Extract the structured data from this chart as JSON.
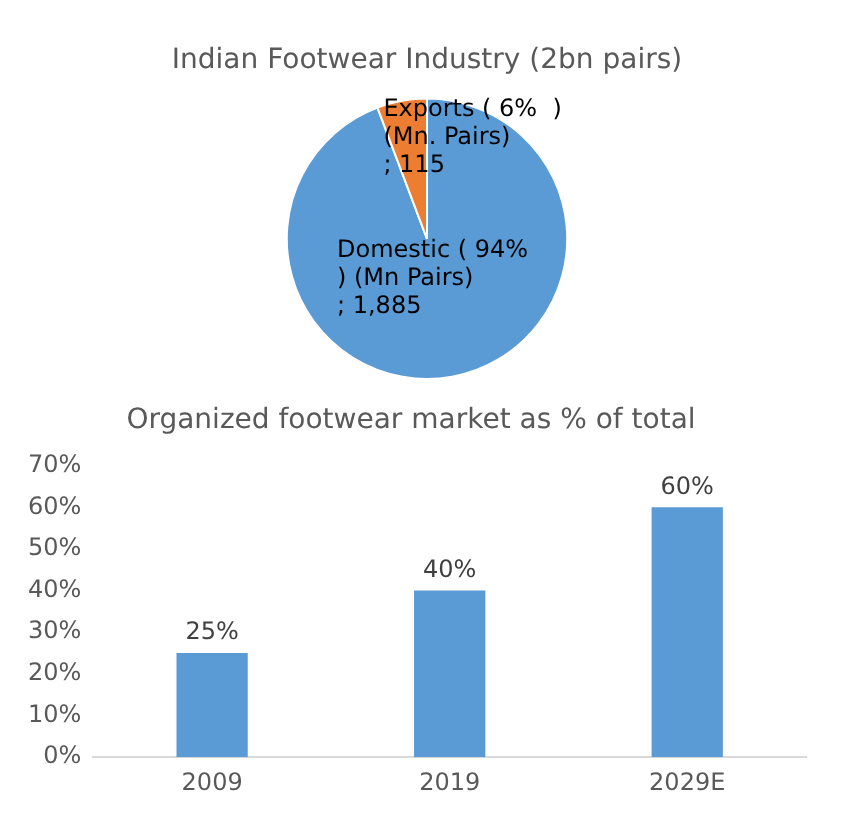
{
  "chart_data": [
    {
      "type": "pie",
      "title": "Indian Footwear Industry (2bn pairs)",
      "categories": [
        "Domestic ( 94%  ) (Mn Pairs)",
        "Exports ( 6%  ) (Mn. Pairs)"
      ],
      "values": [
        1885,
        115
      ],
      "value_labels": [
        "; 1,885",
        "; 115"
      ],
      "colors": [
        "#5b9bd5",
        "#ed7d31"
      ],
      "legend": false
    },
    {
      "type": "bar",
      "title": "Organized footwear market as % of total",
      "categories": [
        "2009",
        "2019",
        "2029E"
      ],
      "values": [
        25,
        40,
        60
      ],
      "value_labels": [
        "25%",
        "40%",
        "60%"
      ],
      "color": "#5b9bd5",
      "ylim": [
        0,
        70
      ],
      "yticks": [
        {
          "value": 0,
          "label": "0%"
        },
        {
          "value": 10,
          "label": "10%"
        },
        {
          "value": 20,
          "label": "20%"
        },
        {
          "value": 30,
          "label": "30%"
        },
        {
          "value": 40,
          "label": "40%"
        },
        {
          "value": 50,
          "label": "50%"
        },
        {
          "value": 60,
          "label": "60%"
        },
        {
          "value": 70,
          "label": "70%"
        }
      ],
      "grid": false,
      "legend": false
    }
  ]
}
